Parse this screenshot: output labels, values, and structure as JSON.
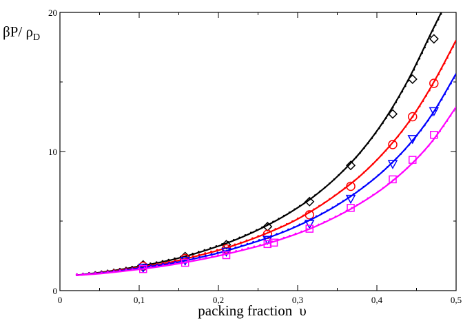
{
  "chart_data": {
    "type": "line",
    "ylabel": {
      "main": "βP/ ρ",
      "sub": "D"
    },
    "xlabel": {
      "text": "packing fraction",
      "symbol": "υ"
    },
    "xlim": [
      0,
      0.5
    ],
    "ylim": [
      0,
      20
    ],
    "x_ticks": [
      0,
      0.1,
      0.2,
      0.3,
      0.4,
      0.5
    ],
    "x_tick_labels": [
      "0",
      "0,1",
      "0,2",
      "0,3",
      "0,4",
      "0,5"
    ],
    "y_ticks": [
      0,
      10,
      20
    ],
    "y_tick_labels": [
      "0",
      "10",
      "20"
    ],
    "grid": false,
    "colors": [
      "#000000",
      "#ff0000",
      "#0000ff",
      "#ff00ff"
    ],
    "series": [
      {
        "color": "#000000",
        "marker": "diamond",
        "curve": {
          "x": [
            0.02,
            0.05,
            0.08,
            0.11,
            0.14,
            0.17,
            0.2,
            0.23,
            0.26,
            0.29,
            0.32,
            0.35,
            0.38,
            0.41,
            0.44,
            0.47,
            0.49
          ],
          "y": [
            1.1,
            1.3,
            1.55,
            1.85,
            2.2,
            2.65,
            3.2,
            3.85,
            4.65,
            5.6,
            6.75,
            8.2,
            10.0,
            12.3,
            15.2,
            18.7,
            21.0
          ]
        },
        "points": {
          "x": [
            0.105,
            0.158,
            0.21,
            0.262,
            0.315,
            0.367,
            0.42,
            0.445,
            0.472
          ],
          "y": [
            1.85,
            2.45,
            3.3,
            4.6,
            6.4,
            9.0,
            12.7,
            15.2,
            18.1
          ]
        }
      },
      {
        "color": "#ff0000",
        "marker": "circle",
        "curve": {
          "x": [
            0.02,
            0.05,
            0.08,
            0.11,
            0.14,
            0.17,
            0.2,
            0.23,
            0.26,
            0.29,
            0.32,
            0.35,
            0.38,
            0.41,
            0.44,
            0.47,
            0.5
          ],
          "y": [
            1.1,
            1.27,
            1.5,
            1.75,
            2.05,
            2.45,
            2.9,
            3.45,
            4.1,
            4.85,
            5.8,
            6.95,
            8.3,
            10.0,
            12.1,
            14.8,
            18.0
          ]
        },
        "points": {
          "x": [
            0.105,
            0.158,
            0.21,
            0.262,
            0.315,
            0.367,
            0.42,
            0.445,
            0.472
          ],
          "y": [
            1.75,
            2.3,
            3.0,
            4.05,
            5.45,
            7.5,
            10.5,
            12.5,
            14.9
          ]
        }
      },
      {
        "color": "#0000ff",
        "marker": "triangle-down",
        "curve": {
          "x": [
            0.02,
            0.05,
            0.08,
            0.11,
            0.14,
            0.17,
            0.2,
            0.23,
            0.26,
            0.29,
            0.32,
            0.35,
            0.38,
            0.41,
            0.44,
            0.47,
            0.5
          ],
          "y": [
            1.1,
            1.25,
            1.45,
            1.7,
            1.95,
            2.3,
            2.7,
            3.2,
            3.75,
            4.4,
            5.2,
            6.15,
            7.3,
            8.7,
            10.45,
            12.7,
            15.6
          ]
        },
        "points": {
          "x": [
            0.105,
            0.158,
            0.21,
            0.262,
            0.315,
            0.367,
            0.42,
            0.445,
            0.472
          ],
          "y": [
            1.65,
            2.15,
            2.8,
            3.65,
            4.8,
            6.6,
            9.1,
            10.9,
            12.9
          ]
        }
      },
      {
        "color": "#ff00ff",
        "marker": "square",
        "curve": {
          "x": [
            0.02,
            0.05,
            0.08,
            0.11,
            0.14,
            0.17,
            0.2,
            0.23,
            0.26,
            0.29,
            0.32,
            0.35,
            0.38,
            0.41,
            0.44,
            0.47,
            0.5
          ],
          "y": [
            1.1,
            1.22,
            1.4,
            1.6,
            1.85,
            2.15,
            2.5,
            2.9,
            3.35,
            3.9,
            4.55,
            5.35,
            6.3,
            7.45,
            8.9,
            10.75,
            13.2
          ]
        },
        "points": {
          "x": [
            0.105,
            0.158,
            0.21,
            0.262,
            0.27,
            0.315,
            0.367,
            0.42,
            0.445,
            0.472
          ],
          "y": [
            1.55,
            2.0,
            2.55,
            3.35,
            3.45,
            4.45,
            5.95,
            8.0,
            9.4,
            11.2
          ]
        }
      }
    ]
  }
}
